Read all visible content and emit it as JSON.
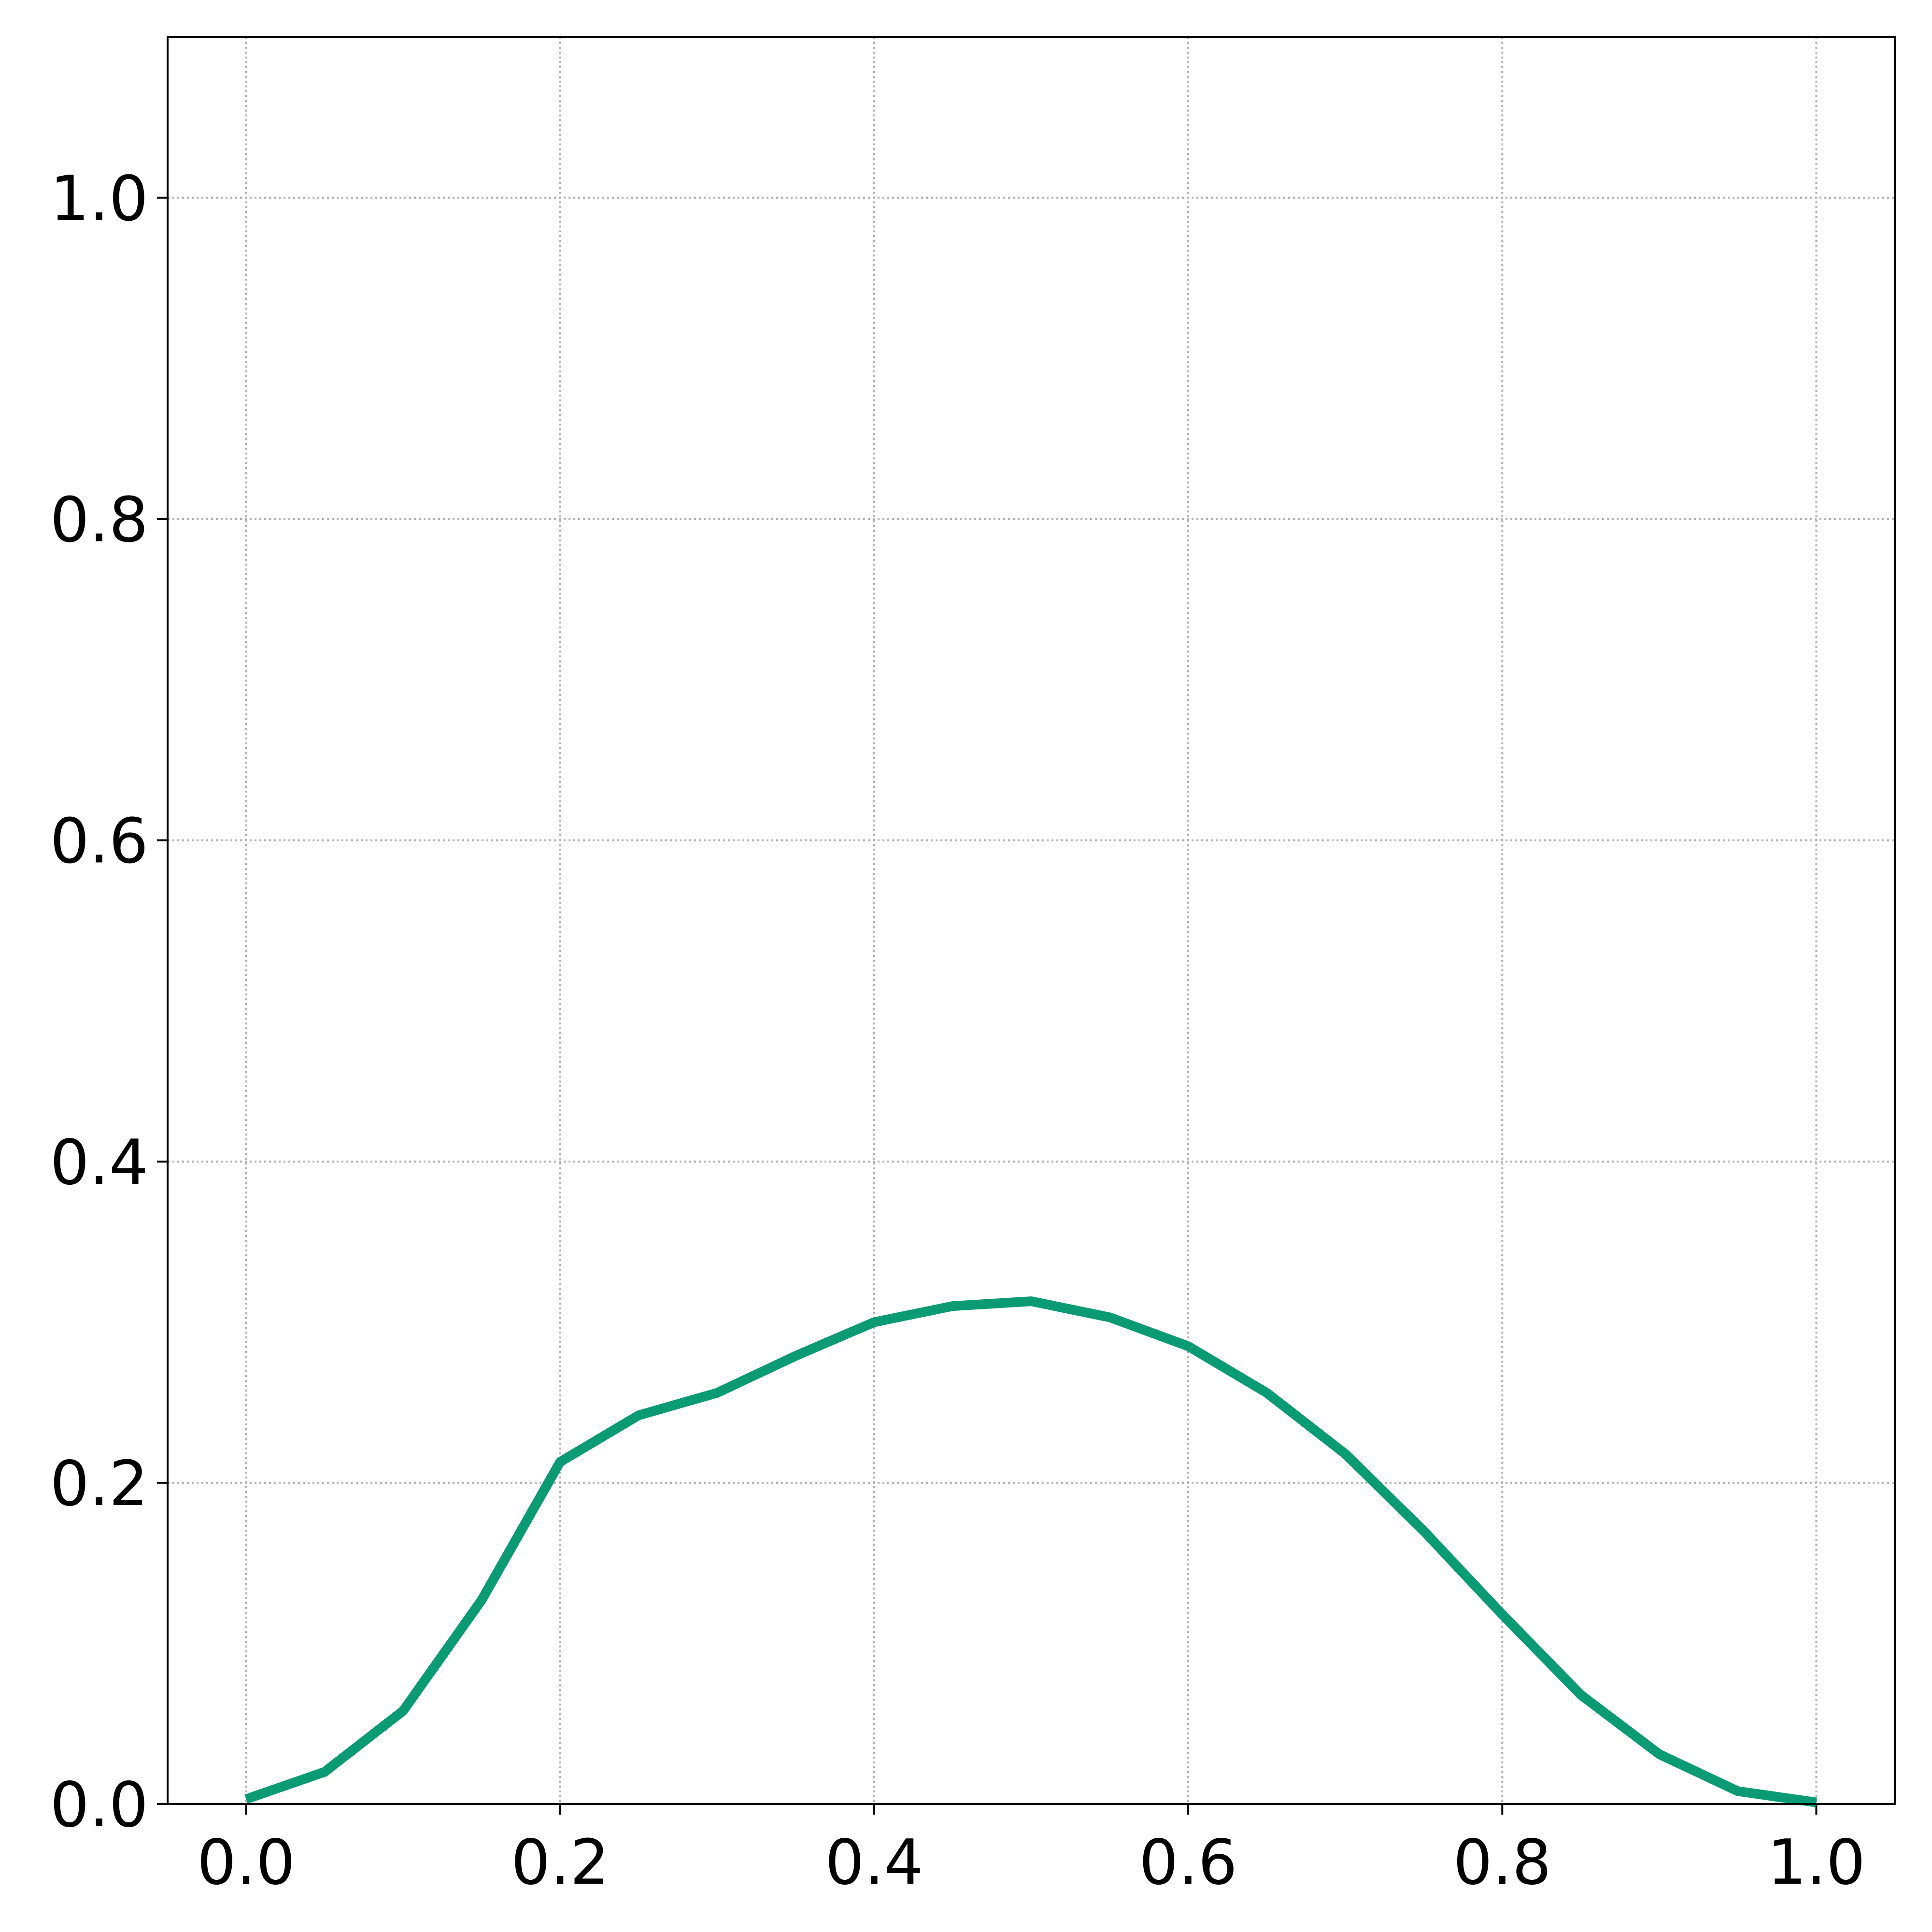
{
  "chart_data": {
    "type": "line",
    "x": [
      0,
      0.05,
      0.1,
      0.15,
      0.2,
      0.25,
      0.3,
      0.35,
      0.4,
      0.45,
      0.5,
      0.55,
      0.6,
      0.65,
      0.7,
      0.75,
      0.8,
      0.85,
      0.9,
      0.95,
      1.0
    ],
    "series": [
      {
        "color": "#0a9b74",
        "values": [
          0.003,
          0.02,
          0.058,
          0.127,
          0.213,
          0.242,
          0.256,
          0.279,
          0.3,
          0.31,
          0.313,
          0.303,
          0.285,
          0.256,
          0.218,
          0.17,
          0.118,
          0.068,
          0.031,
          0.008,
          0.001
        ]
      }
    ],
    "xlim": [
      -0.05,
      1.05
    ],
    "ylim": [
      0,
      1.1
    ],
    "xticks": [
      {
        "value": 0,
        "label": "0.0"
      },
      0.2,
      0.4,
      0.6,
      0.8,
      {
        "value": 1,
        "label": "1.0"
      }
    ],
    "yticks": [
      {
        "value": 0,
        "label": "0.0"
      },
      0.2,
      0.4,
      0.6,
      0.8,
      {
        "value": 1,
        "label": "1.0"
      }
    ],
    "grid": true
  }
}
